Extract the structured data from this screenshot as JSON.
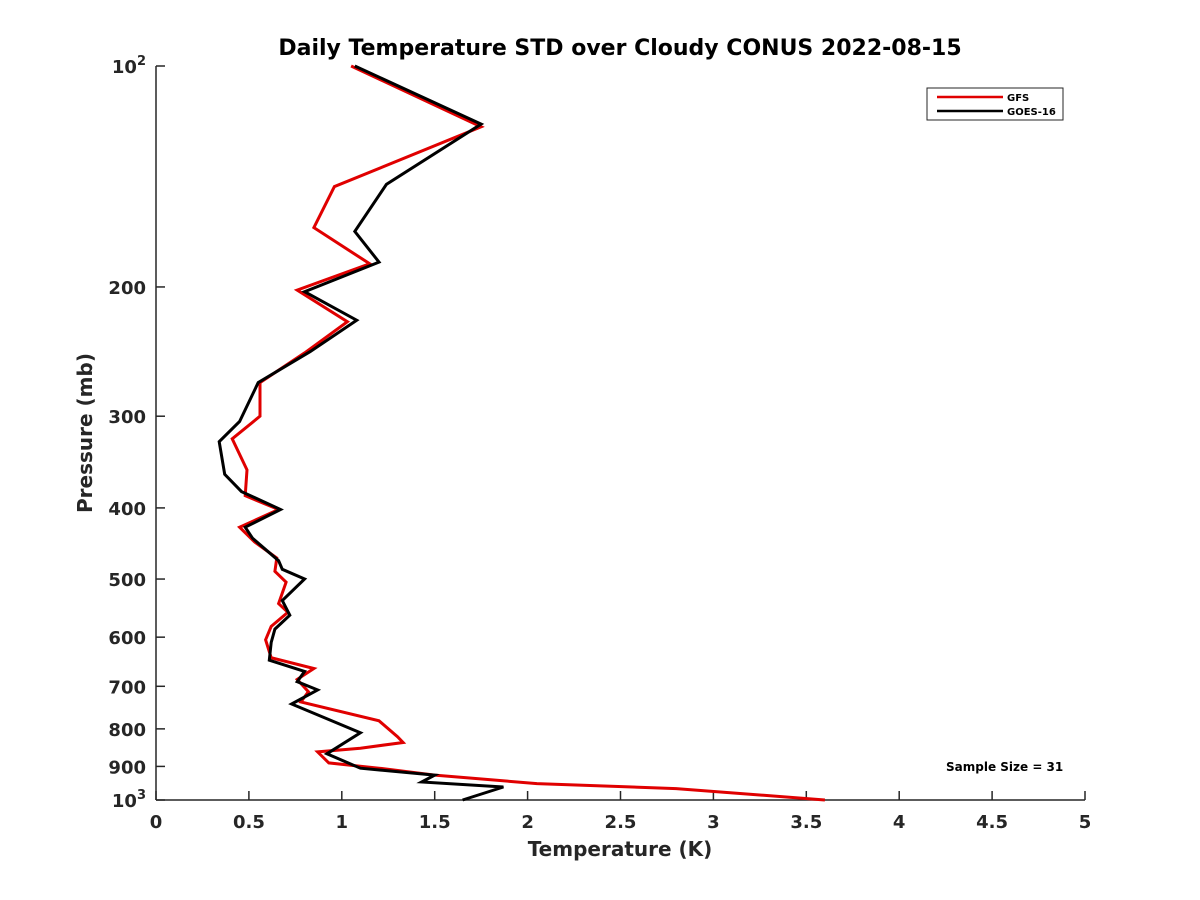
{
  "chart_data": {
    "type": "line",
    "title": "Daily Temperature STD over Cloudy CONUS 2022-08-15",
    "xlabel": "Temperature (K)",
    "ylabel": "Pressure (mb)",
    "xlim": [
      0,
      5
    ],
    "ylim": [
      100,
      1000
    ],
    "y_scale": "log",
    "y_reversed": true,
    "grid": false,
    "legend_position": "top-right",
    "x_ticks": [
      0,
      0.5,
      1,
      1.5,
      2,
      2.5,
      3,
      3.5,
      4,
      4.5,
      5
    ],
    "x_tick_labels": [
      "0",
      "0.5",
      "1",
      "1.5",
      "2",
      "2.5",
      "3",
      "3.5",
      "4",
      "4.5",
      "5"
    ],
    "y_ticks": [
      {
        "value": 100,
        "base": "10",
        "exp": "2"
      },
      {
        "value": 200,
        "label": "200"
      },
      {
        "value": 300,
        "label": "300"
      },
      {
        "value": 400,
        "label": "400"
      },
      {
        "value": 500,
        "label": "500"
      },
      {
        "value": 600,
        "label": "600"
      },
      {
        "value": 700,
        "label": "700"
      },
      {
        "value": 800,
        "label": "800"
      },
      {
        "value": 900,
        "label": "900"
      },
      {
        "value": 1000,
        "base": "10",
        "exp": "3"
      }
    ],
    "annotation": "Sample Size = 31",
    "series": [
      {
        "name": "GFS",
        "color": "#e00000",
        "points": [
          {
            "x": 1.05,
            "y": 100
          },
          {
            "x": 1.75,
            "y": 121
          },
          {
            "x": 0.96,
            "y": 146
          },
          {
            "x": 0.85,
            "y": 166
          },
          {
            "x": 1.15,
            "y": 186
          },
          {
            "x": 0.76,
            "y": 202
          },
          {
            "x": 1.03,
            "y": 223
          },
          {
            "x": 0.8,
            "y": 246
          },
          {
            "x": 0.56,
            "y": 270
          },
          {
            "x": 0.56,
            "y": 300
          },
          {
            "x": 0.41,
            "y": 322
          },
          {
            "x": 0.49,
            "y": 355
          },
          {
            "x": 0.48,
            "y": 385
          },
          {
            "x": 0.66,
            "y": 402
          },
          {
            "x": 0.45,
            "y": 425
          },
          {
            "x": 0.53,
            "y": 445
          },
          {
            "x": 0.65,
            "y": 468
          },
          {
            "x": 0.64,
            "y": 488
          },
          {
            "x": 0.7,
            "y": 505
          },
          {
            "x": 0.66,
            "y": 540
          },
          {
            "x": 0.71,
            "y": 555
          },
          {
            "x": 0.62,
            "y": 580
          },
          {
            "x": 0.59,
            "y": 605
          },
          {
            "x": 0.62,
            "y": 640
          },
          {
            "x": 0.85,
            "y": 662
          },
          {
            "x": 0.76,
            "y": 685
          },
          {
            "x": 0.82,
            "y": 712
          },
          {
            "x": 0.78,
            "y": 735
          },
          {
            "x": 1.2,
            "y": 780
          },
          {
            "x": 1.3,
            "y": 820
          },
          {
            "x": 1.33,
            "y": 835
          },
          {
            "x": 1.1,
            "y": 850
          },
          {
            "x": 0.87,
            "y": 860
          },
          {
            "x": 0.93,
            "y": 890
          },
          {
            "x": 1.2,
            "y": 905
          },
          {
            "x": 1.5,
            "y": 925
          },
          {
            "x": 2.05,
            "y": 950
          },
          {
            "x": 2.8,
            "y": 965
          },
          {
            "x": 3.6,
            "y": 1000
          }
        ]
      },
      {
        "name": "GOES-16",
        "color": "#000000",
        "points": [
          {
            "x": 1.07,
            "y": 100
          },
          {
            "x": 1.75,
            "y": 120
          },
          {
            "x": 1.24,
            "y": 145
          },
          {
            "x": 1.07,
            "y": 168
          },
          {
            "x": 1.2,
            "y": 185
          },
          {
            "x": 0.8,
            "y": 203
          },
          {
            "x": 1.08,
            "y": 222
          },
          {
            "x": 0.83,
            "y": 245
          },
          {
            "x": 0.55,
            "y": 270
          },
          {
            "x": 0.45,
            "y": 305
          },
          {
            "x": 0.34,
            "y": 325
          },
          {
            "x": 0.37,
            "y": 360
          },
          {
            "x": 0.46,
            "y": 380
          },
          {
            "x": 0.67,
            "y": 402
          },
          {
            "x": 0.48,
            "y": 425
          },
          {
            "x": 0.52,
            "y": 440
          },
          {
            "x": 0.66,
            "y": 472
          },
          {
            "x": 0.68,
            "y": 485
          },
          {
            "x": 0.8,
            "y": 500
          },
          {
            "x": 0.68,
            "y": 535
          },
          {
            "x": 0.72,
            "y": 560
          },
          {
            "x": 0.64,
            "y": 585
          },
          {
            "x": 0.62,
            "y": 610
          },
          {
            "x": 0.61,
            "y": 645
          },
          {
            "x": 0.8,
            "y": 668
          },
          {
            "x": 0.76,
            "y": 690
          },
          {
            "x": 0.87,
            "y": 708
          },
          {
            "x": 0.73,
            "y": 740
          },
          {
            "x": 1.1,
            "y": 810
          },
          {
            "x": 0.92,
            "y": 865
          },
          {
            "x": 1.1,
            "y": 905
          },
          {
            "x": 1.5,
            "y": 925
          },
          {
            "x": 1.43,
            "y": 945
          },
          {
            "x": 1.87,
            "y": 960
          },
          {
            "x": 1.65,
            "y": 1000
          }
        ]
      }
    ]
  }
}
